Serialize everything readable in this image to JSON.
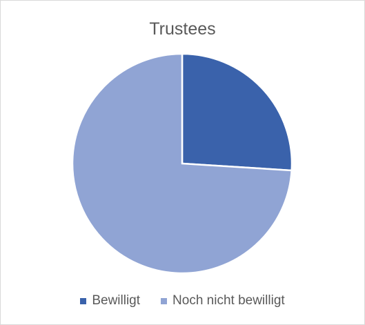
{
  "chart_data": {
    "type": "pie",
    "title": "Trustees",
    "categories": [
      "Bewilligt",
      "Noch nicht bewilligt"
    ],
    "values": [
      26,
      74
    ],
    "colors": [
      "#3a62ab",
      "#90a4d4"
    ],
    "legend_position": "bottom"
  }
}
